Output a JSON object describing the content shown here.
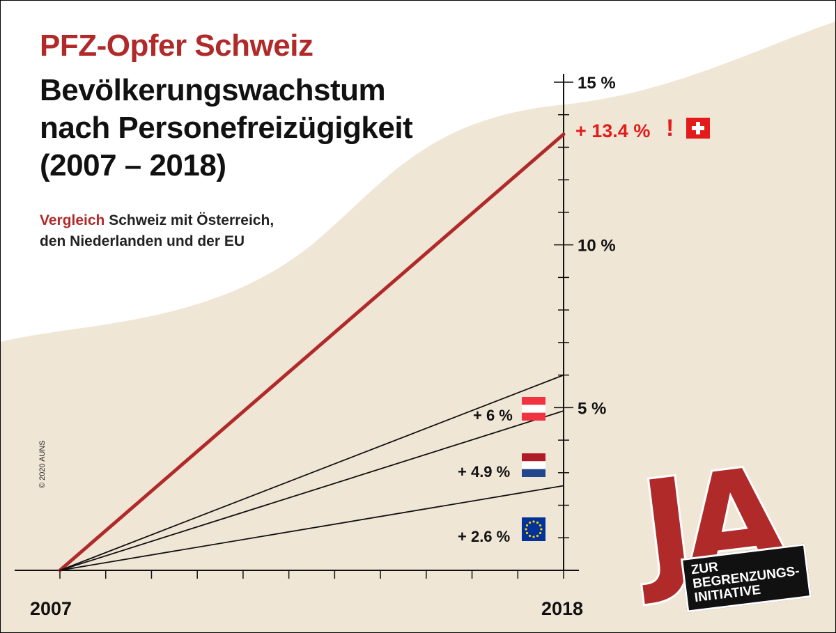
{
  "header": {
    "title_red": "PFZ-Opfer Schweiz",
    "title_lines": [
      "Bevölkerungswachstum",
      "nach Personefreizügigkeit",
      "(2007 – 2018)"
    ],
    "subtitle_highlight": "Vergleich",
    "subtitle_rest_1": "Schweiz mit Österreich,",
    "subtitle_rest_2": "den Niederlanden und der EU"
  },
  "copyright": "© 2020 AUNS",
  "logo": {
    "big": "JA",
    "line1": "ZUR",
    "line2": "BEGRENZUNGS-",
    "line3": "INITIATIVE"
  },
  "colors": {
    "accent": "#b02a2a",
    "background_band": "#f0e6d6",
    "red_label": "#e31b1b",
    "austria_red": "#ef3340",
    "nl_red": "#ae1c28",
    "nl_blue": "#21468b",
    "eu_blue": "#003399",
    "eu_star": "#ffcc00"
  },
  "chart_data": {
    "type": "line",
    "title": "Bevölkerungswachstum nach Personefreizügigkeit (2007 – 2018)",
    "x": [
      2007,
      2018
    ],
    "x_tick_labels": [
      "2007",
      "2018"
    ],
    "xlim": [
      2007,
      2018
    ],
    "ylim": [
      0,
      15
    ],
    "y_tick_labels": [
      "5 %",
      "10 %",
      "15 %"
    ],
    "y_tick_values": [
      5,
      10,
      15
    ],
    "series": [
      {
        "name": "Schweiz",
        "values": [
          0,
          13.4
        ],
        "label": "+ 13.4 %",
        "suffix": "!",
        "flag": "ch-flag"
      },
      {
        "name": "Österreich",
        "values": [
          0,
          6
        ],
        "label": "+ 6 %",
        "flag": "at-flag"
      },
      {
        "name": "Niederlande",
        "values": [
          0,
          4.9
        ],
        "label": "+ 4.9 %",
        "flag": "nl-flag"
      },
      {
        "name": "EU",
        "values": [
          0,
          2.6
        ],
        "label": "+ 2.6 %",
        "flag": "eu-flag"
      }
    ]
  }
}
